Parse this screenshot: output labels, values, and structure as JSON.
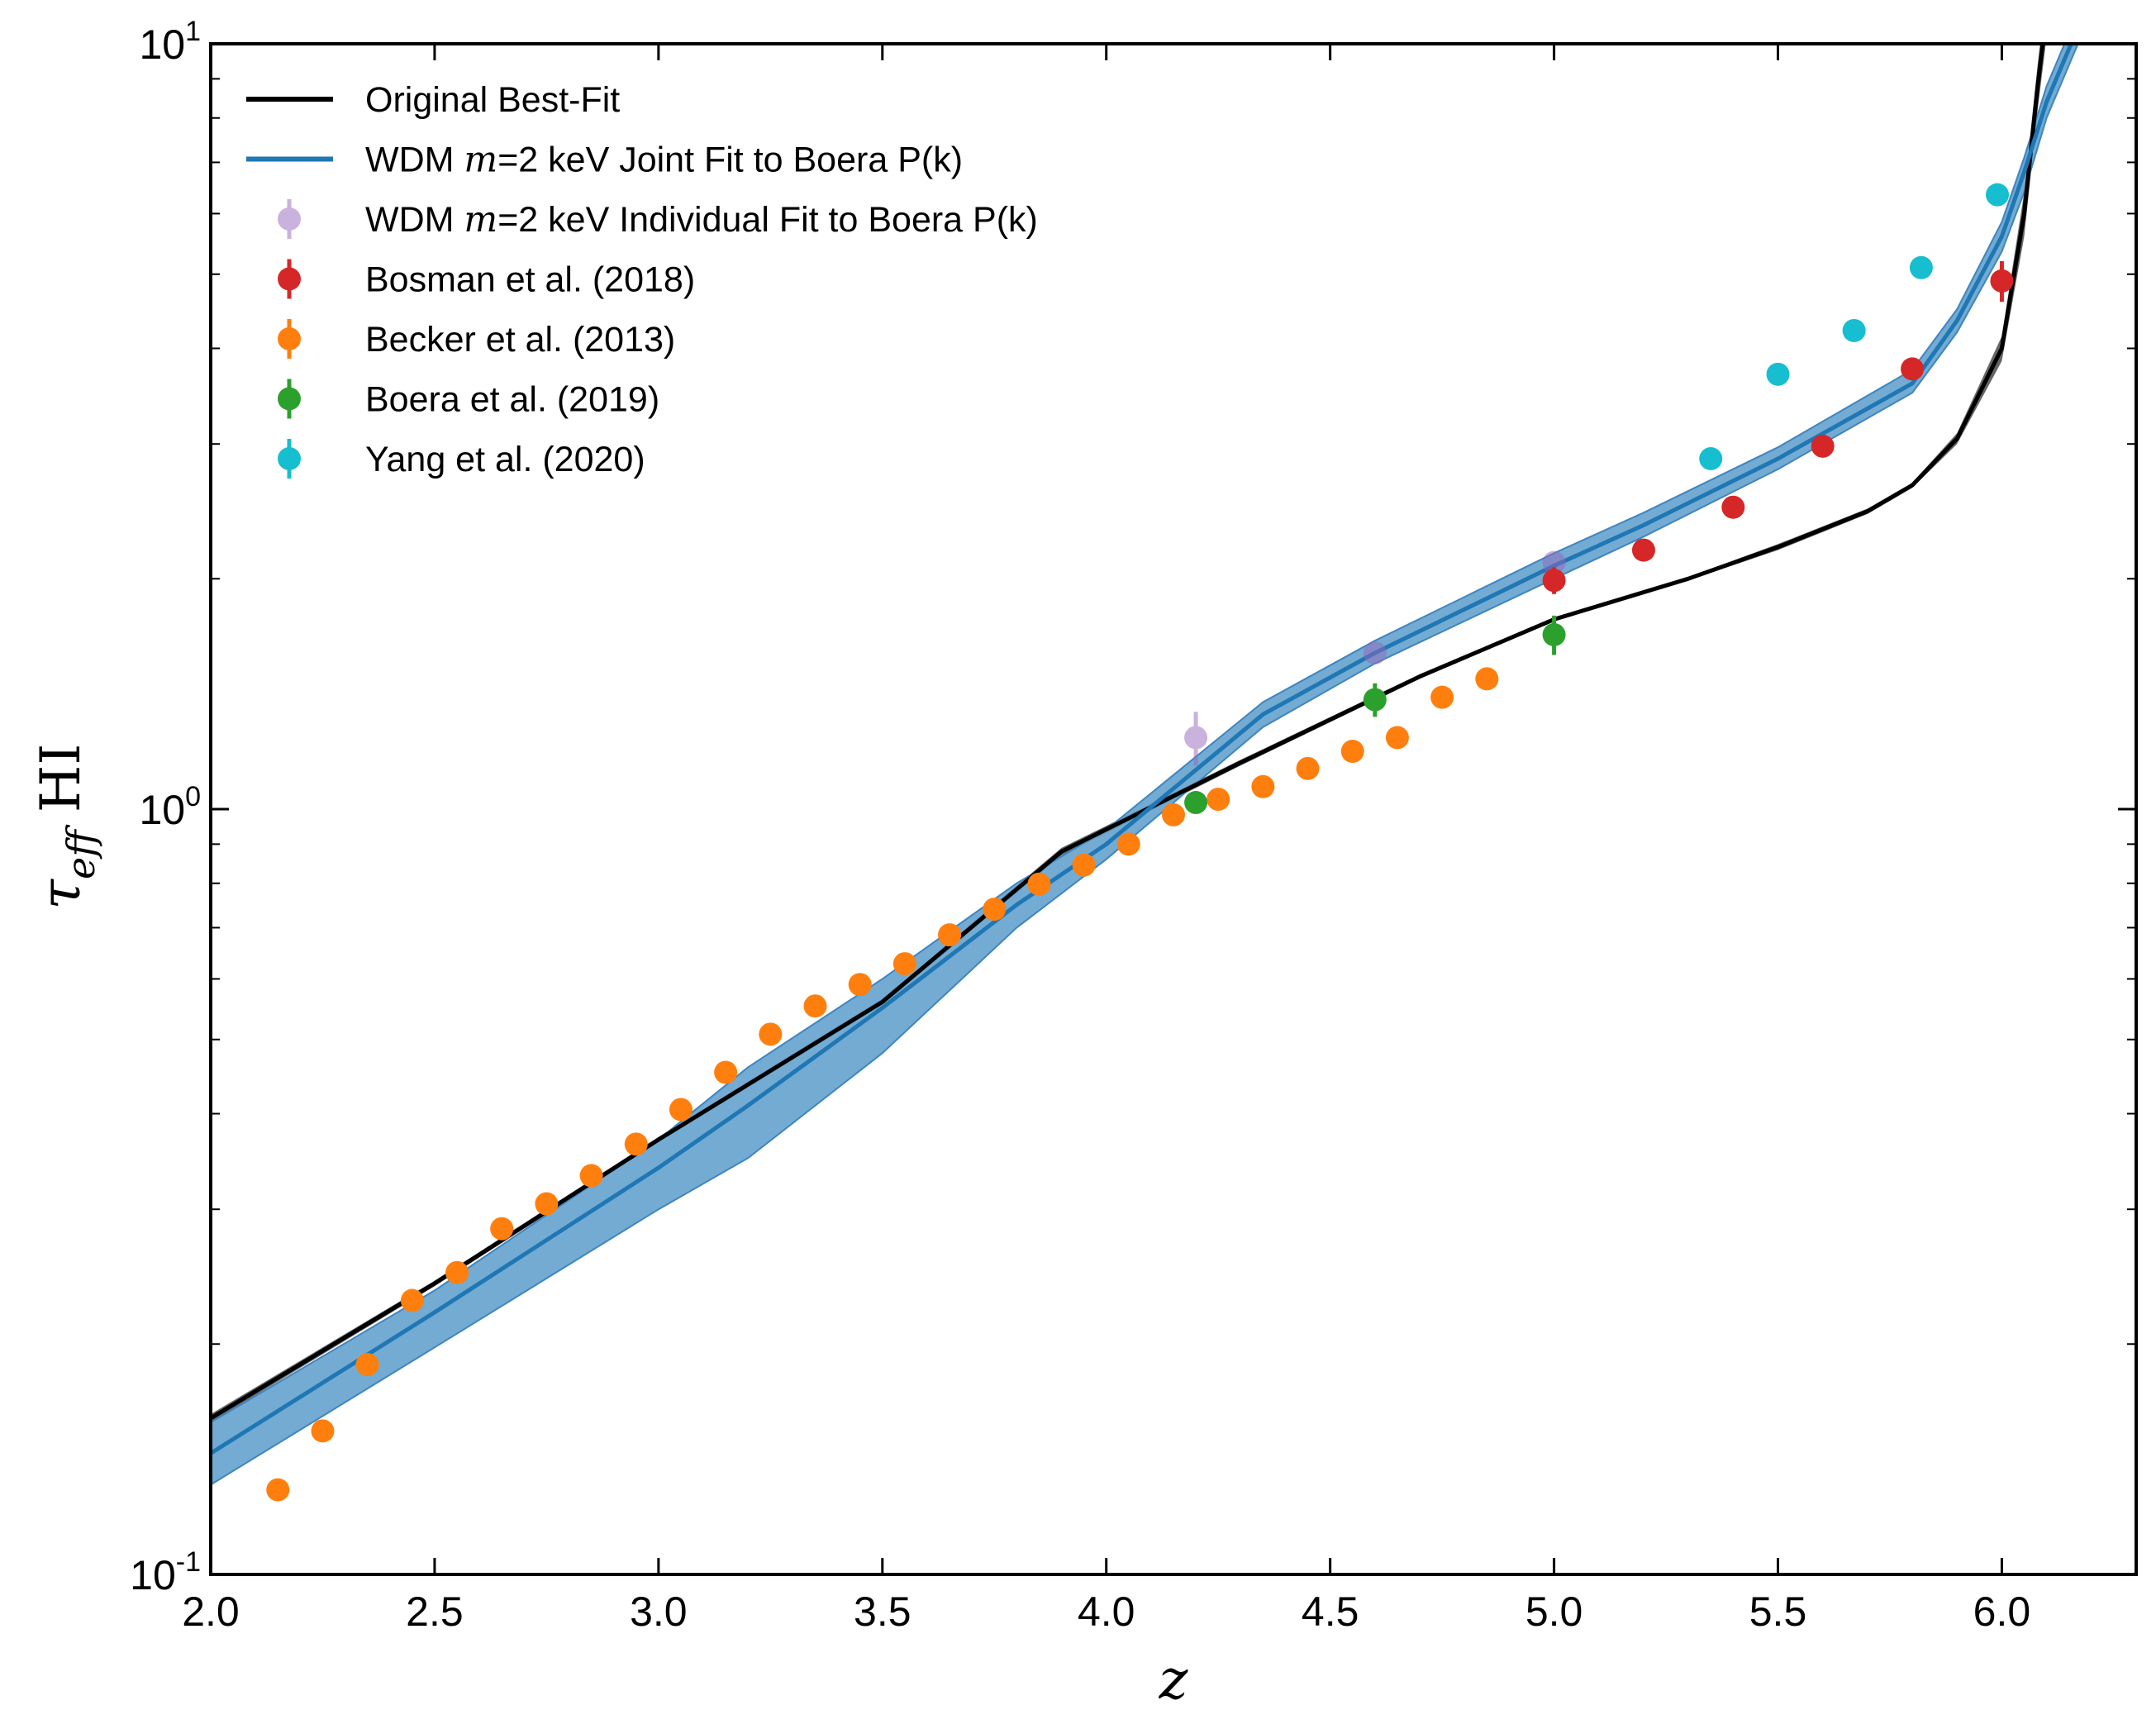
{
  "chart_data": {
    "type": "scatter",
    "xlabel": "z",
    "ylabel": "τ_eff HI",
    "ylabel_main": "τ",
    "ylabel_sub": "eff",
    "ylabel_tail": " HI",
    "xlim": [
      2.0,
      6.3
    ],
    "ylim": [
      0.1,
      10
    ],
    "yscale": "log",
    "grid": false,
    "legend_position": "top-left",
    "x_ticks": [
      {
        "value": 2.0,
        "label": "2.0"
      },
      {
        "value": 2.5,
        "label": "2.5"
      },
      {
        "value": 3.0,
        "label": "3.0"
      },
      {
        "value": 3.5,
        "label": "3.5"
      },
      {
        "value": 4.0,
        "label": "4.0"
      },
      {
        "value": 4.5,
        "label": "4.5"
      },
      {
        "value": 5.0,
        "label": "5.0"
      },
      {
        "value": 5.5,
        "label": "5.5"
      },
      {
        "value": 6.0,
        "label": "6.0"
      }
    ],
    "y_ticks": [
      {
        "value": 0.1,
        "base": "10",
        "exp": "-1"
      },
      {
        "value": 1,
        "base": "10",
        "exp": "0"
      },
      {
        "value": 10,
        "base": "10",
        "exp": "1"
      }
    ],
    "lines": [
      {
        "name": "Original Best-Fit",
        "color": "#000000",
        "x": [
          2.0,
          2.5,
          3.0,
          3.5,
          3.9,
          4.3,
          4.7,
          5.0,
          5.3,
          5.5,
          5.7,
          5.8,
          5.9,
          6.0,
          6.05,
          6.08,
          6.1
        ],
        "y": [
          0.16,
          0.24,
          0.37,
          0.56,
          0.88,
          1.15,
          1.49,
          1.77,
          2.0,
          2.2,
          2.45,
          2.65,
          3.05,
          4.0,
          6.0,
          8.8,
          11.0
        ],
        "band_lower": [
          0.158,
          0.238,
          0.367,
          0.555,
          0.87,
          1.14,
          1.48,
          1.76,
          1.99,
          2.18,
          2.43,
          2.63,
          3.0,
          3.85,
          5.6,
          8.2,
          10.2
        ],
        "band_upper": [
          0.162,
          0.242,
          0.373,
          0.565,
          0.89,
          1.16,
          1.5,
          1.78,
          2.01,
          2.22,
          2.47,
          2.67,
          3.1,
          4.15,
          6.4,
          9.4,
          11.8
        ]
      },
      {
        "name": "WDM m=2 keV Joint Fit to Boera P(k)",
        "name_prefix": "WDM ",
        "name_math": "m",
        "name_suffix": "=2 keV Joint Fit to Boera P(k)",
        "color": "#1f77b4",
        "band_color": "#5a9ccb",
        "x": [
          2.0,
          2.5,
          3.0,
          3.2,
          3.5,
          3.8,
          4.0,
          4.35,
          4.6,
          5.0,
          5.2,
          5.5,
          5.8,
          5.9,
          6.0,
          6.05,
          6.1,
          6.17
        ],
        "y": [
          0.144,
          0.22,
          0.34,
          0.41,
          0.55,
          0.75,
          0.9,
          1.33,
          1.6,
          2.08,
          2.35,
          2.87,
          3.6,
          4.35,
          5.6,
          6.8,
          8.4,
          10.5
        ],
        "band_lower": [
          0.131,
          0.198,
          0.3,
          0.35,
          0.48,
          0.7,
          0.86,
          1.28,
          1.55,
          2.0,
          2.27,
          2.78,
          3.5,
          4.2,
          5.35,
          6.4,
          8.0,
          10.0
        ],
        "band_upper": [
          0.158,
          0.235,
          0.37,
          0.46,
          0.6,
          0.8,
          0.94,
          1.38,
          1.66,
          2.16,
          2.44,
          2.97,
          3.75,
          4.5,
          5.85,
          7.1,
          8.8,
          11.0
        ]
      }
    ],
    "scatter": [
      {
        "name": "WDM m=2 keV Individual Fit to Boera P(k)",
        "name_prefix": "WDM ",
        "name_math": "m",
        "name_suffix": "=2 keV Individual Fit to Boera P(k)",
        "color": "#9467bd",
        "alpha": 0.5,
        "points": [
          {
            "x": 4.2,
            "y": 1.24,
            "err": 0.1
          },
          {
            "x": 4.6,
            "y": 1.6,
            "err": 0.05
          },
          {
            "x": 5.0,
            "y": 2.1,
            "err": 0.06
          }
        ]
      },
      {
        "name": "Bosman et al. (2018)",
        "color": "#d62728",
        "alpha": 1,
        "points": [
          {
            "x": 5.0,
            "y": 1.99,
            "err": 0.08
          },
          {
            "x": 5.2,
            "y": 2.18,
            "err": 0.05
          },
          {
            "x": 5.4,
            "y": 2.48,
            "err": 0.05
          },
          {
            "x": 5.6,
            "y": 2.98,
            "err": 0.06
          },
          {
            "x": 5.8,
            "y": 3.76,
            "err": 0.12
          },
          {
            "x": 6.0,
            "y": 4.9,
            "err": 0.3
          }
        ]
      },
      {
        "name": "Becker et al. (2013)",
        "color": "#ff7f0e",
        "alpha": 1,
        "points": [
          {
            "x": 2.15,
            "y": 0.129
          },
          {
            "x": 2.25,
            "y": 0.154
          },
          {
            "x": 2.35,
            "y": 0.188
          },
          {
            "x": 2.45,
            "y": 0.228
          },
          {
            "x": 2.55,
            "y": 0.248
          },
          {
            "x": 2.65,
            "y": 0.283
          },
          {
            "x": 2.75,
            "y": 0.305
          },
          {
            "x": 2.85,
            "y": 0.332
          },
          {
            "x": 2.95,
            "y": 0.365
          },
          {
            "x": 3.05,
            "y": 0.405
          },
          {
            "x": 3.15,
            "y": 0.453
          },
          {
            "x": 3.25,
            "y": 0.508
          },
          {
            "x": 3.35,
            "y": 0.553
          },
          {
            "x": 3.45,
            "y": 0.59
          },
          {
            "x": 3.55,
            "y": 0.628
          },
          {
            "x": 3.65,
            "y": 0.685
          },
          {
            "x": 3.75,
            "y": 0.74
          },
          {
            "x": 3.85,
            "y": 0.798
          },
          {
            "x": 3.95,
            "y": 0.845
          },
          {
            "x": 4.05,
            "y": 0.9
          },
          {
            "x": 4.15,
            "y": 0.983
          },
          {
            "x": 4.25,
            "y": 1.03
          },
          {
            "x": 4.35,
            "y": 1.07
          },
          {
            "x": 4.45,
            "y": 1.13
          },
          {
            "x": 4.55,
            "y": 1.19
          },
          {
            "x": 4.65,
            "y": 1.24
          },
          {
            "x": 4.75,
            "y": 1.4
          },
          {
            "x": 4.85,
            "y": 1.48
          }
        ]
      },
      {
        "name": "Boera et al. (2019)",
        "color": "#2ca02c",
        "alpha": 1,
        "points": [
          {
            "x": 4.2,
            "y": 1.02,
            "err": 0.03
          },
          {
            "x": 4.6,
            "y": 1.39,
            "err": 0.07
          },
          {
            "x": 5.0,
            "y": 1.69,
            "err": 0.1
          }
        ]
      },
      {
        "name": "Yang et al. (2020)",
        "color": "#17becf",
        "alpha": 1,
        "points": [
          {
            "x": 5.35,
            "y": 2.87
          },
          {
            "x": 5.5,
            "y": 3.7
          },
          {
            "x": 5.67,
            "y": 4.22
          },
          {
            "x": 5.82,
            "y": 5.1
          },
          {
            "x": 5.99,
            "y": 6.35
          }
        ]
      }
    ]
  }
}
